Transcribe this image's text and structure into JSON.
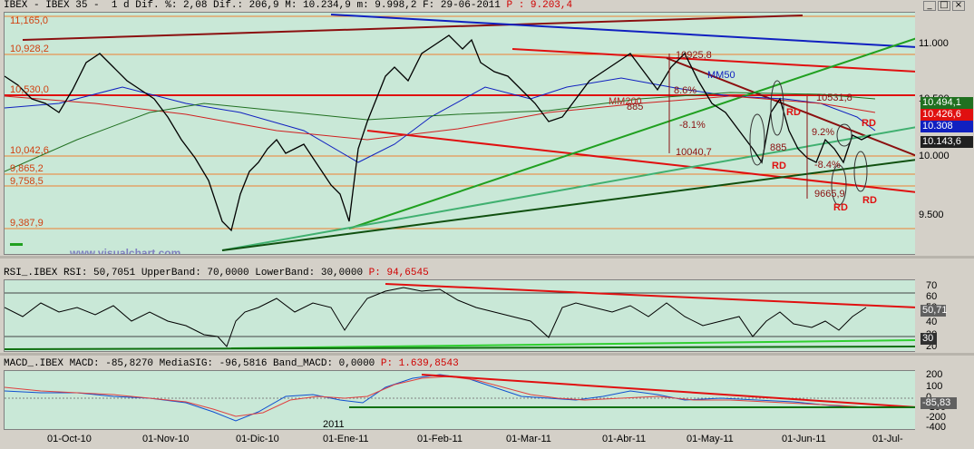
{
  "main_panel": {
    "title_text": "IBEX - IBEX 35 -  1 d Dif. %: 2,08 Dif.: 206,9 M: 10.234,9 m: 9.998,2 F: 29-06-2011 ",
    "title_p": "P : 9.203,4",
    "watermark": "www.visualchart.com",
    "levels": [
      "11,165,0",
      "10,928,2",
      "10,530,0",
      "10,042,6",
      "9,865,2",
      "9,758,5",
      "9,387,9"
    ],
    "axis_ticks": [
      "11.000",
      "10.500",
      "10.000",
      "9.500"
    ],
    "badges": {
      "b1": "10.494,1",
      "b2": "10.426,6",
      "b3": "10.308",
      "b4": "10.143,6"
    },
    "annotations": {
      "a1": "10925,8",
      "a2": "MM50",
      "a3": "MM200",
      "a4": "885",
      "a5": "8.6%",
      "a6": "-8.1%",
      "a7": "10040,7",
      "a8": "10531,8",
      "a9": "885",
      "a10": "9.2%",
      "a11": "-8.4%",
      "a12": "9665,9",
      "rd": "RD"
    }
  },
  "rsi_panel": {
    "title": "RSI_.IBEX RSI: 50,7051 UpperBand: 70,0000 LowerBand: 30,0000 ",
    "title_p": "P: 94,6545",
    "axis_ticks": [
      "70",
      "60",
      "50",
      "40",
      "30",
      "20"
    ],
    "badge_value": "50,71",
    "badge_low": "30"
  },
  "macd_panel": {
    "title": "MACD_.IBEX MACD: -85,8270 MediaSIG: -96,5816 Band_MACD: 0,0000 ",
    "title_p": "P: 1.639,8543",
    "axis_ticks": [
      "200",
      "100",
      "0",
      "-100",
      "-200",
      "-400"
    ],
    "badge_value": "-85,83"
  },
  "date_axis": {
    "labels": [
      "01-Oct-10",
      "01-Nov-10",
      "01-Dic-10",
      "01-Ene-11",
      "01-Feb-11",
      "01-Mar-11",
      "01-Abr-11",
      "01-May-11",
      "01-Jun-11",
      "01-Jul-"
    ],
    "year_label": "2011"
  },
  "colors": {
    "plot_bg": "#c9e8d7",
    "red": "#e01010",
    "blue": "#1020c0",
    "green": "#20a020",
    "darkred": "#8b1010"
  }
}
